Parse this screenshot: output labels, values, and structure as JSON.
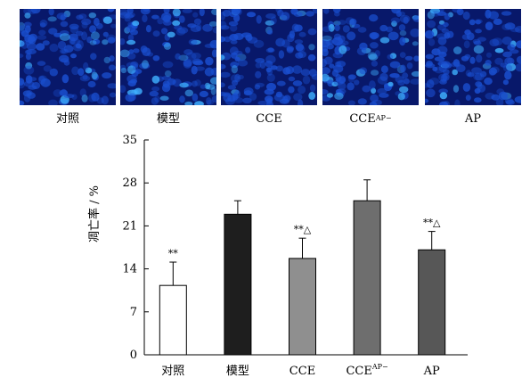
{
  "panels": [
    {
      "label": "对照",
      "sup": ""
    },
    {
      "label": "模型",
      "sup": ""
    },
    {
      "label": "CCE",
      "sup": ""
    },
    {
      "label": "CCE",
      "sup": "AP−"
    },
    {
      "label": "AP",
      "sup": ""
    }
  ],
  "chart_data": {
    "type": "bar",
    "title": "",
    "xlabel": "",
    "ylabel": "凋亡率 / %",
    "ylim": [
      0,
      35
    ],
    "yticks": [
      "0",
      "7",
      "14",
      "21",
      "28",
      "35"
    ],
    "categories": [
      {
        "label": "对照",
        "sup": ""
      },
      {
        "label": "模型",
        "sup": ""
      },
      {
        "label": "CCE",
        "sup": ""
      },
      {
        "label": "CCE",
        "sup": "AP−"
      },
      {
        "label": "AP",
        "sup": ""
      }
    ],
    "values": [
      11.3,
      22.9,
      15.7,
      25.1,
      17.1
    ],
    "errors": [
      3.8,
      2.2,
      3.3,
      3.4,
      3.0
    ],
    "bar_colors": [
      "#ffffff",
      "#1e1e1e",
      "#8f8f8f",
      "#6e6e6e",
      "#575757"
    ],
    "annotations": [
      "**",
      "",
      "**△",
      "",
      "**△"
    ],
    "grid": false
  },
  "colors": {
    "panel_bg": "#08186a",
    "cell": "#1a4fd0",
    "cell_bright": "#3fb0ff"
  }
}
